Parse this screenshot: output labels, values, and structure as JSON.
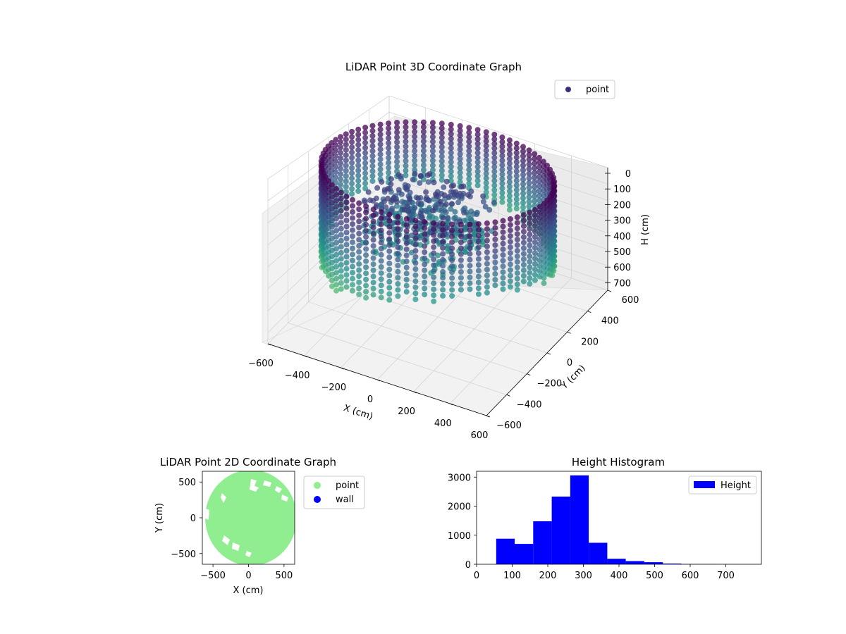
{
  "chart_data": [
    {
      "type": "scatter",
      "title": "LiDAR Point 3D Coordinate Graph",
      "xlabel": "X (cm)",
      "ylabel": "Y (cm)",
      "zlabel": "H (cm)",
      "xlim": [
        -600,
        600
      ],
      "ylim": [
        -600,
        600
      ],
      "zlim": [
        0,
        750
      ],
      "z_inverted": true,
      "x_ticks": [
        "−600",
        "−400",
        "−200",
        "0",
        "200",
        "400",
        "600"
      ],
      "y_ticks": [
        "−600",
        "−400",
        "−200",
        "0",
        "200",
        "400",
        "600"
      ],
      "z_ticks": [
        "0",
        "100",
        "200",
        "300",
        "400",
        "500",
        "600",
        "700"
      ],
      "colormap": "viridis",
      "series": [
        {
          "name": "point",
          "color": "#3b2f7e"
        }
      ],
      "legend_position": "top-right",
      "grid": true
    },
    {
      "type": "scatter",
      "title": "LiDAR Point 2D Coordinate Graph",
      "xlabel": "X (cm)",
      "ylabel": "Y (cm)",
      "xlim": [
        -650,
        650
      ],
      "ylim": [
        -650,
        650
      ],
      "x_ticks": [
        "−500",
        "0",
        "500"
      ],
      "y_ticks": [
        "500",
        "0",
        "−500"
      ],
      "series": [
        {
          "name": "point",
          "color": "#90ee90"
        },
        {
          "name": "wall",
          "color": "#0000ff"
        }
      ],
      "legend_position": "outside-right",
      "grid": false
    },
    {
      "type": "bar",
      "title": "Height Histogram",
      "xlim": [
        0,
        800
      ],
      "ylim": [
        0,
        3200
      ],
      "x_ticks": [
        "0",
        "100",
        "200",
        "300",
        "400",
        "500",
        "600",
        "700"
      ],
      "y_ticks": [
        "0",
        "1000",
        "2000",
        "3000"
      ],
      "bin_width": 52,
      "bins": [
        {
          "x0": 55,
          "value": 880
        },
        {
          "x0": 107,
          "value": 700
        },
        {
          "x0": 159,
          "value": 1480
        },
        {
          "x0": 211,
          "value": 2330
        },
        {
          "x0": 263,
          "value": 3060
        },
        {
          "x0": 315,
          "value": 740
        },
        {
          "x0": 367,
          "value": 190
        },
        {
          "x0": 419,
          "value": 110
        },
        {
          "x0": 471,
          "value": 70
        },
        {
          "x0": 523,
          "value": 25
        },
        {
          "x0": 575,
          "value": 8
        },
        {
          "x0": 627,
          "value": 4
        },
        {
          "x0": 679,
          "value": 2
        },
        {
          "x0": 731,
          "value": 1
        }
      ],
      "series": [
        {
          "name": "Height",
          "color": "#0000ff"
        }
      ],
      "legend_position": "top-right",
      "grid": false
    }
  ]
}
